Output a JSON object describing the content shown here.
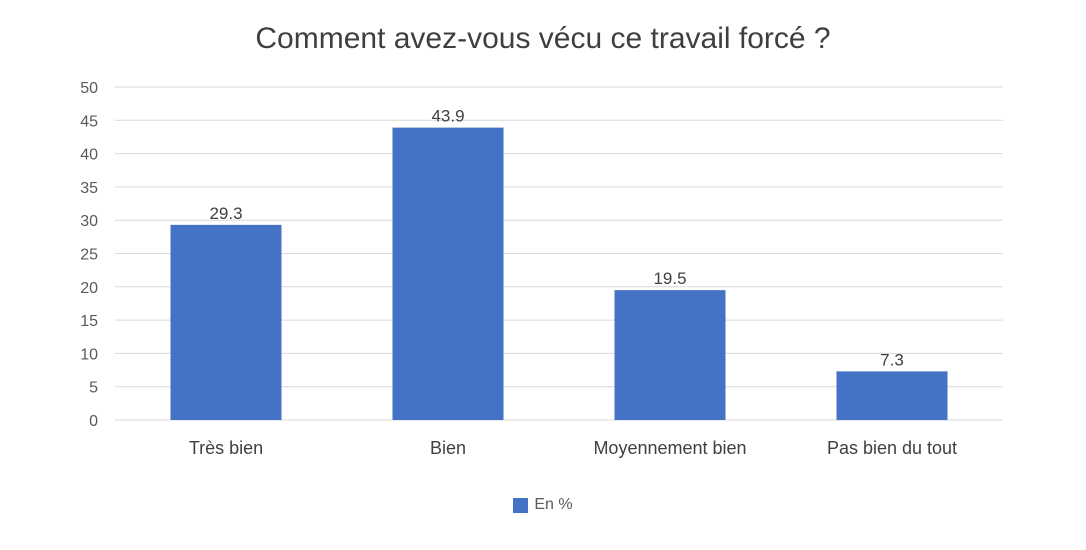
{
  "chart_data": {
    "type": "bar",
    "title": "Comment avez-vous vécu ce travail forcé ?",
    "categories": [
      "Très bien",
      "Bien",
      "Moyennement bien",
      "Pas bien du tout"
    ],
    "series": [
      {
        "name": "En %",
        "values": [
          29.3,
          43.9,
          19.5,
          7.3
        ],
        "color": "#4472c4"
      }
    ],
    "data_labels": [
      "29.3",
      "43.9",
      "19.5",
      "7.3"
    ],
    "ylim": [
      0,
      50
    ],
    "yticks": [
      0,
      5,
      10,
      15,
      20,
      25,
      30,
      35,
      40,
      45,
      50
    ],
    "grid": true,
    "legend_position": "bottom"
  }
}
